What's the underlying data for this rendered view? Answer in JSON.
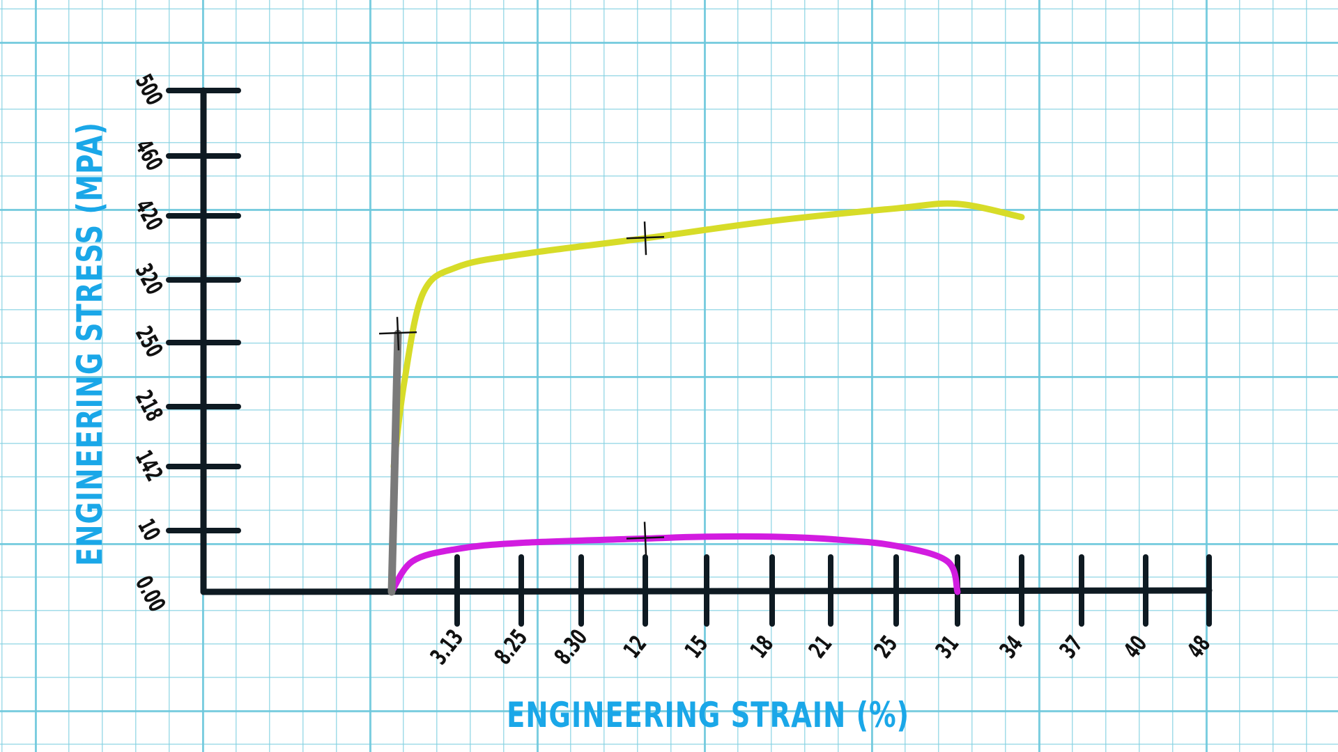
{
  "colors": {
    "axis_title": "#1aa7e8",
    "axis": "#0e1a22",
    "elastic_line": "#7a7a7a",
    "upper_curve": "#d7dc28",
    "lower_curve": "#d21ce0",
    "grid": "#79cbe0"
  },
  "chart_data": {
    "type": "line",
    "xlabel": "ENGINEERING STRAIN (%)",
    "ylabel": "ENGINEERING STRESS (MPA)",
    "x_scale": "categorical-ticks",
    "y_scale": "categorical-ticks",
    "x_ticks": [
      "3.13",
      "8.25",
      "8.30",
      "12",
      "15",
      "18",
      "21",
      "25",
      "31",
      "34",
      "37",
      "40",
      "48"
    ],
    "y_ticks": [
      "0.00",
      "10",
      "142",
      "218",
      "250",
      "320",
      "420",
      "460",
      "500"
    ],
    "grid": true,
    "legend": "none",
    "series": [
      {
        "color": "gray",
        "points": [
          [
            0,
            0
          ],
          [
            0.3,
            260
          ]
        ]
      },
      {
        "color": "yellow",
        "points": [
          [
            0.1,
            142
          ],
          [
            0.6,
            230
          ],
          [
            1.5,
            305
          ],
          [
            3.13,
            340
          ],
          [
            8.25,
            360
          ],
          [
            12,
            385
          ],
          [
            18,
            412
          ],
          [
            25,
            425
          ],
          [
            31,
            428
          ],
          [
            34,
            418
          ]
        ]
      },
      {
        "color": "magenta",
        "points": [
          [
            0,
            0
          ],
          [
            1,
            5
          ],
          [
            3.13,
            7
          ],
          [
            8.25,
            8
          ],
          [
            12,
            8.7
          ],
          [
            15,
            9
          ],
          [
            18,
            9
          ],
          [
            21,
            8.6
          ],
          [
            25,
            7.5
          ],
          [
            30,
            5
          ],
          [
            31,
            0
          ]
        ]
      }
    ],
    "markers": [
      {
        "x": 0.3,
        "y": 260
      },
      {
        "x": 12,
        "y": 385
      },
      {
        "x": 12,
        "y": 8.7
      }
    ]
  }
}
